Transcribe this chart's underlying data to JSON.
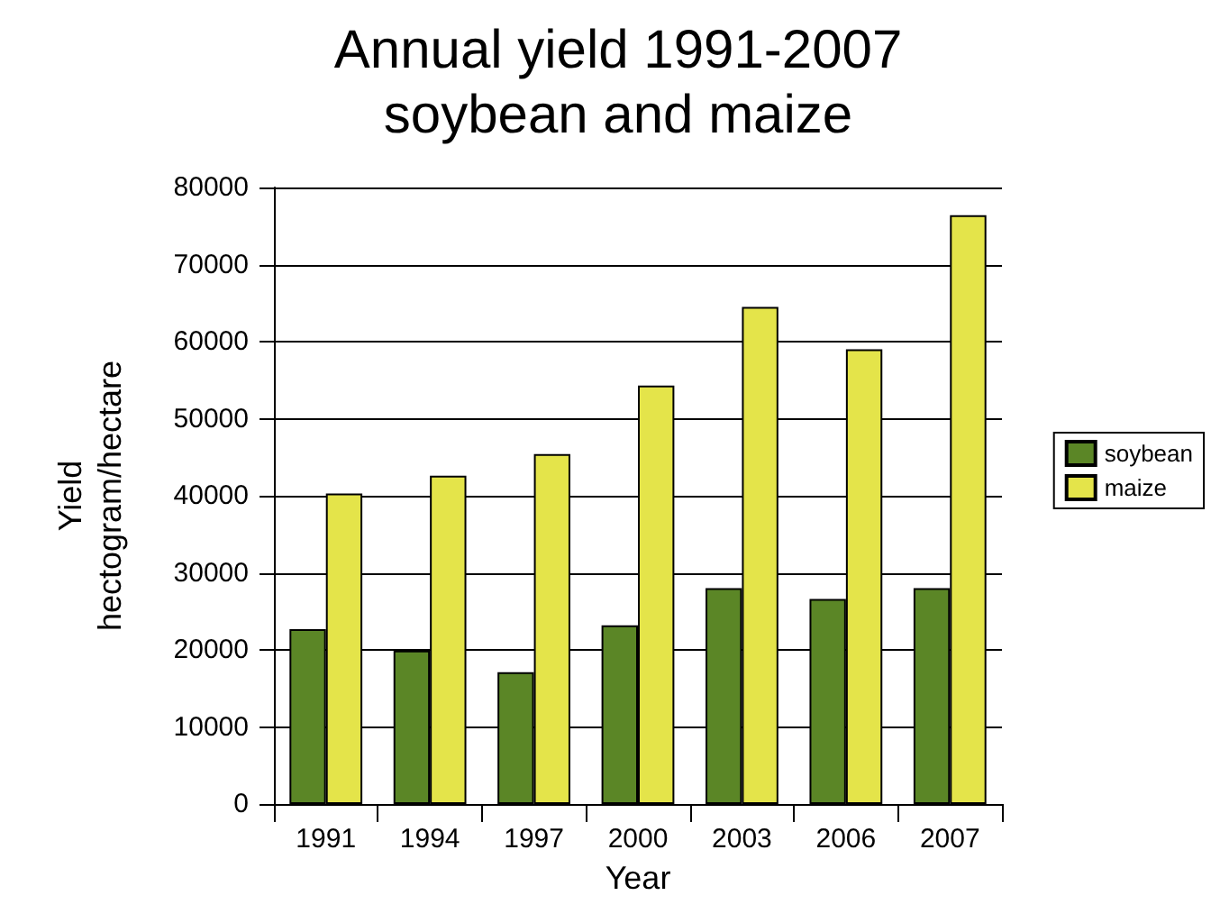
{
  "chart_data": {
    "type": "bar",
    "title": "Annual yield 1991-2007",
    "subtitle": "soybean and maize",
    "xlabel": "Year",
    "ylabel": "Yield\nhectogram/hectare",
    "categories": [
      "1991",
      "1994",
      "1997",
      "2000",
      "2003",
      "2006",
      "2007"
    ],
    "series": [
      {
        "name": "soybean",
        "color": "#5b8626",
        "values": [
          22700,
          19900,
          17100,
          23200,
          28000,
          26600,
          28000
        ]
      },
      {
        "name": "maize",
        "color": "#e4e44a",
        "values": [
          40300,
          42600,
          45400,
          54300,
          64500,
          59000,
          76400
        ]
      }
    ],
    "ylim": [
      0,
      80000
    ],
    "yticks": [
      0,
      10000,
      20000,
      30000,
      40000,
      50000,
      60000,
      70000,
      80000
    ],
    "grid": "y",
    "legend": "right"
  }
}
